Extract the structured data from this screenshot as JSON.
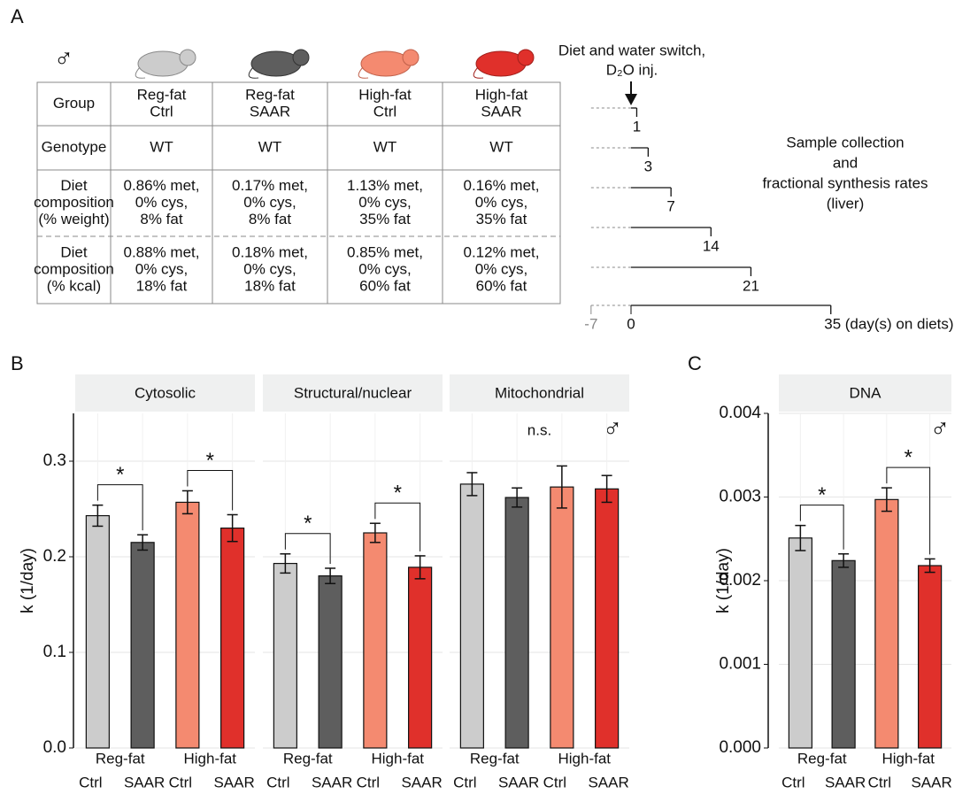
{
  "panel_labels": [
    "A",
    "B",
    "C"
  ],
  "sex_symbol": "♂",
  "table": {
    "rows": [
      [
        [
          "Group"
        ],
        [
          "Reg-fat",
          "Ctrl"
        ],
        [
          "Reg-fat",
          "SAAR"
        ],
        [
          "High-fat",
          "Ctrl"
        ],
        [
          "High-fat",
          "SAAR"
        ]
      ],
      [
        [
          "Genotype"
        ],
        [
          "WT"
        ],
        [
          "WT"
        ],
        [
          "WT"
        ],
        [
          "WT"
        ]
      ],
      [
        [
          "Diet",
          "composition",
          "(% weight)"
        ],
        [
          "0.86% met,",
          "0% cys,",
          "8% fat"
        ],
        [
          "0.17% met,",
          "0% cys,",
          "8% fat"
        ],
        [
          "1.13% met,",
          "0% cys,",
          "35% fat"
        ],
        [
          "0.16% met,",
          "0% cys,",
          "35% fat"
        ]
      ],
      [
        [
          "Diet",
          "composition",
          "(% kcal)"
        ],
        [
          "0.88% met,",
          "0% cys,",
          "18% fat"
        ],
        [
          "0.18% met,",
          "0% cys,",
          "18% fat"
        ],
        [
          "0.85% met,",
          "0% cys,",
          "60% fat"
        ],
        [
          "0.12% met,",
          "0% cys,",
          "60% fat"
        ]
      ]
    ]
  },
  "timeline": {
    "event": [
      "Diet and water switch,",
      "D₂O inj."
    ],
    "start": -7,
    "origin": 0,
    "days": [
      1,
      3,
      7,
      14,
      21,
      35
    ],
    "axis_label": "(day(s) on diets)",
    "note": [
      "Sample collection",
      "and",
      "fractional synthesis rates",
      "(liver)"
    ]
  },
  "chart_data": [
    {
      "type": "bar",
      "ylabel": "k (1/day)",
      "ylim": [
        0,
        0.35
      ],
      "yticks": [
        {
          "value": 0,
          "label": "0.0"
        },
        0.1,
        0.2,
        0.3
      ],
      "grid": true,
      "groups": [
        "Reg-fat",
        "High-fat"
      ],
      "categories": [
        "Ctrl",
        "SAAR",
        "Ctrl",
        "SAAR"
      ],
      "colors": [
        "#cccccc",
        "#5e5e5e",
        "#f48a70",
        "#e0302b"
      ],
      "facets": [
        {
          "title": "Cytosolic",
          "values": [
            0.243,
            0.215,
            0.257,
            0.23
          ],
          "errors": [
            0.011,
            0.008,
            0.012,
            0.014
          ],
          "annotations": [
            "*",
            "*"
          ]
        },
        {
          "title": "Structural/nuclear",
          "values": [
            0.193,
            0.18,
            0.225,
            0.189
          ],
          "errors": [
            0.01,
            0.008,
            0.01,
            0.012
          ],
          "annotations": [
            "*",
            "*"
          ]
        },
        {
          "title": "Mitochondrial",
          "values": [
            0.276,
            0.262,
            0.273,
            0.271
          ],
          "errors": [
            0.012,
            0.01,
            0.022,
            0.014
          ],
          "note": "n.s."
        }
      ]
    },
    {
      "type": "bar",
      "ylabel": "k (1/day)",
      "ylim": [
        0,
        0.004
      ],
      "yticks": [
        {
          "value": 0,
          "label": "0.000"
        },
        0.001,
        0.002,
        0.003,
        0.004
      ],
      "grid": true,
      "groups": [
        "Reg-fat",
        "High-fat"
      ],
      "categories": [
        "Ctrl",
        "SAAR",
        "Ctrl",
        "SAAR"
      ],
      "colors": [
        "#cccccc",
        "#5e5e5e",
        "#f48a70",
        "#e0302b"
      ],
      "facets": [
        {
          "title": "DNA",
          "values": [
            0.00251,
            0.00224,
            0.00297,
            0.00218
          ],
          "errors": [
            0.00015,
            8e-05,
            0.00014,
            8e-05
          ],
          "annotations": [
            "*",
            "*"
          ]
        }
      ]
    }
  ]
}
